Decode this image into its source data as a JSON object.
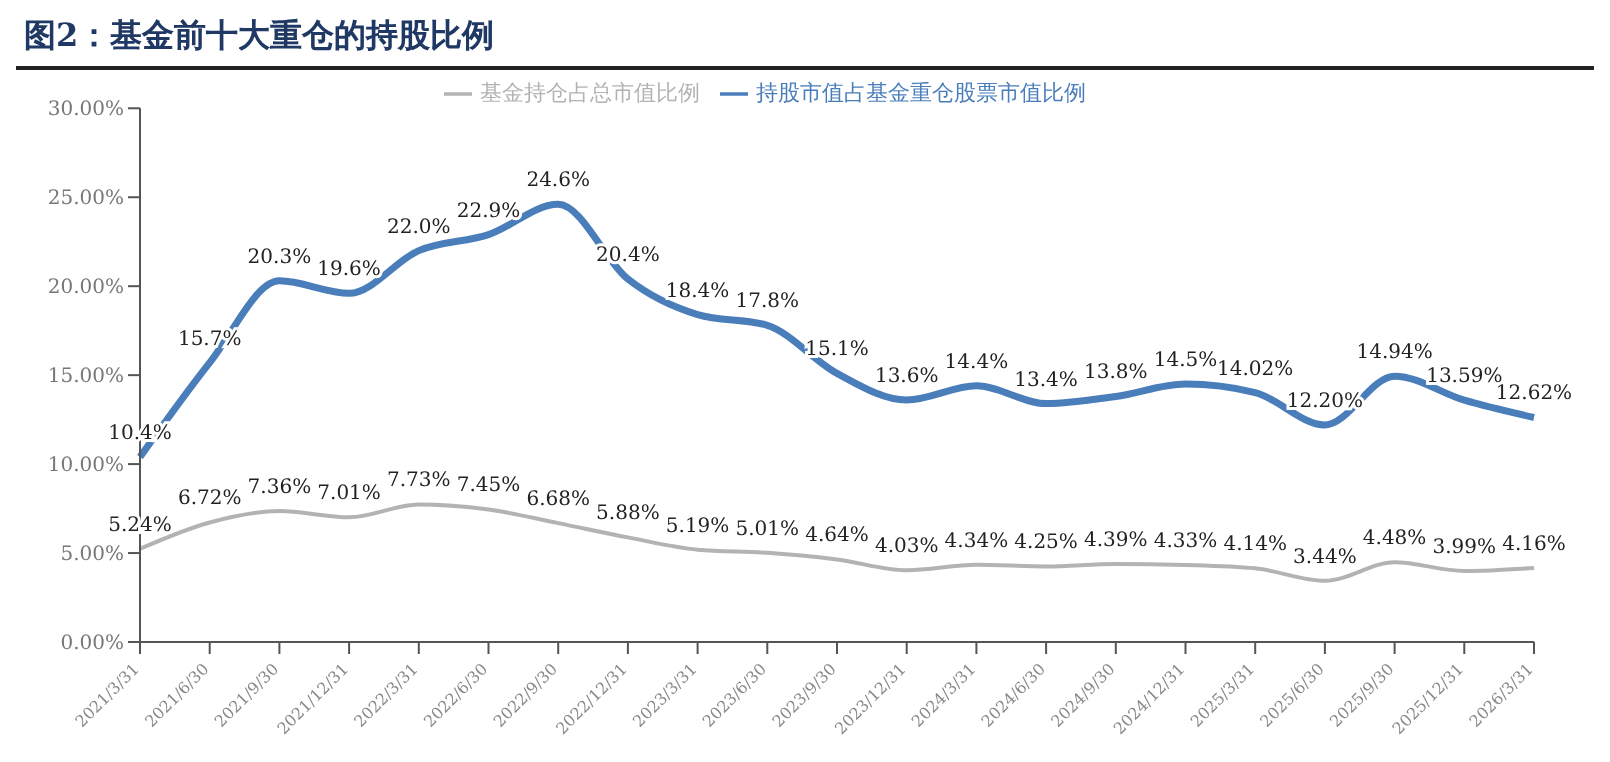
{
  "chart_data": {
    "type": "line",
    "title": "图2：基金前十大重仓的持股比例",
    "categories": [
      "2021/3/31",
      "2021/6/30",
      "2021/9/30",
      "2021/12/31",
      "2022/3/31",
      "2022/6/30",
      "2022/9/30",
      "2022/12/31",
      "2023/3/31",
      "2023/6/30",
      "2023/9/30",
      "2023/12/31",
      "2024/3/31",
      "2024/6/30",
      "2024/9/30",
      "2024/12/31",
      "2025/3/31",
      "2025/6/30",
      "2025/9/30",
      "2025/12/31",
      "2026/3/31"
    ],
    "series": [
      {
        "name": "基金持仓占总市值比例",
        "color": "#b3b3b3",
        "values": [
          5.24,
          6.72,
          7.36,
          7.01,
          7.73,
          7.45,
          6.68,
          5.88,
          5.19,
          5.01,
          4.64,
          4.03,
          4.34,
          4.25,
          4.39,
          4.33,
          4.14,
          3.44,
          4.48,
          3.99,
          4.16
        ],
        "value_labels": [
          "5.24%",
          "6.72%",
          "7.36%",
          "7.01%",
          "7.73%",
          "7.45%",
          "6.68%",
          "5.88%",
          "5.19%",
          "5.01%",
          "4.64%",
          "4.03%",
          "4.34%",
          "4.25%",
          "4.39%",
          "4.33%",
          "4.14%",
          "3.44%",
          "4.48%",
          "3.99%",
          "4.16%"
        ]
      },
      {
        "name": "持股市值占基金重仓股票市值比例",
        "color": "#4a7ebb",
        "values": [
          10.4,
          15.7,
          20.3,
          19.6,
          22.0,
          22.9,
          24.6,
          20.4,
          18.4,
          17.8,
          15.1,
          13.6,
          14.4,
          13.4,
          13.8,
          14.5,
          14.02,
          12.2,
          14.94,
          13.59,
          12.62
        ],
        "value_labels": [
          "10.4%",
          "15.7%",
          "20.3%",
          "19.6%",
          "22.0%",
          "22.9%",
          "24.6%",
          "20.4%",
          "18.4%",
          "17.8%",
          "15.1%",
          "13.6%",
          "14.4%",
          "13.4%",
          "13.8%",
          "14.5%",
          "14.02%",
          "12.20%",
          "14.94%",
          "13.59%",
          "12.62%"
        ]
      }
    ],
    "ylim": [
      0,
      30
    ],
    "yticks": [
      {
        "value": 0,
        "label": "0.00%"
      },
      {
        "value": 5,
        "label": "5.00%"
      },
      {
        "value": 10,
        "label": "10.00%"
      },
      {
        "value": 15,
        "label": "15.00%"
      },
      {
        "value": 20,
        "label": "20.00%"
      },
      {
        "value": 25,
        "label": "25.00%"
      },
      {
        "value": 30,
        "label": "30.00%"
      }
    ],
    "grid": false,
    "legend": "top",
    "marker": "none",
    "line_style": "solid"
  }
}
